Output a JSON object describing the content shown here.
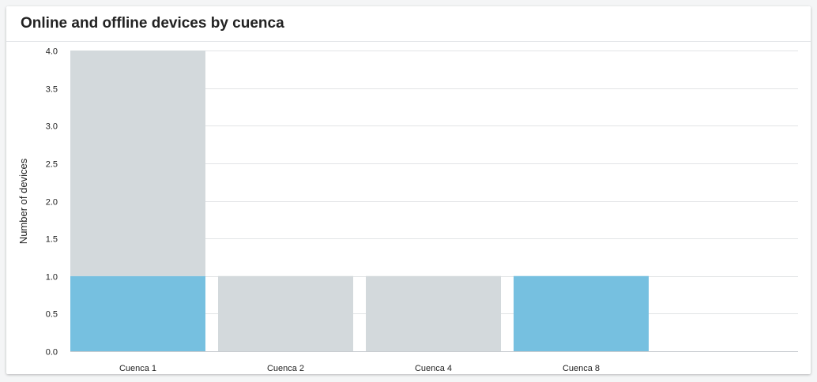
{
  "card": {
    "title": "Online and offline devices by cuenca"
  },
  "colors": {
    "online": "#76c0e0",
    "offline": "#d3d9dc",
    "grid": "#e2e4e6",
    "baseline": "#c8ccd0"
  },
  "chart_data": {
    "type": "bar",
    "stacked": true,
    "title": "Online and offline devices by cuenca",
    "ylabel": "Number of devices",
    "xlabel": "",
    "ylim": [
      0,
      4
    ],
    "yticks": [
      "0.0",
      "0.5",
      "1.0",
      "1.5",
      "2.0",
      "2.5",
      "3.0",
      "3.5",
      "4.0"
    ],
    "categories": [
      "Cuenca 1",
      "Cuenca 2",
      "Cuenca 4",
      "Cuenca 8"
    ],
    "series": [
      {
        "key": "online",
        "values": [
          1,
          0,
          0,
          1
        ]
      },
      {
        "key": "offline",
        "values": [
          3,
          1,
          1,
          0
        ]
      }
    ],
    "grid": true,
    "legend": "none"
  }
}
